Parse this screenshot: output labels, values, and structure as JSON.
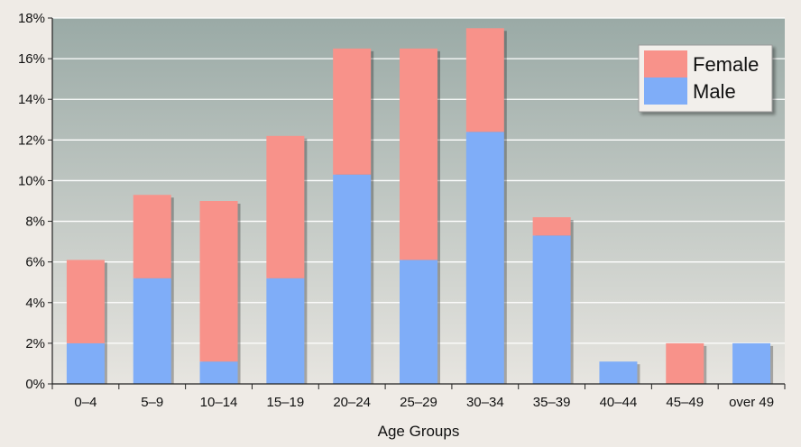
{
  "chart_data": {
    "type": "bar",
    "stacked": true,
    "title": "",
    "xlabel": "Age Groups",
    "ylabel": "",
    "ylim": [
      0,
      18
    ],
    "ytick_step": 2,
    "ytick_suffix": "%",
    "grid": true,
    "legend_position": "top-right",
    "categories": [
      "0–4",
      "5–9",
      "10–14",
      "15–19",
      "20–24",
      "25–29",
      "30–34",
      "35–39",
      "40–44",
      "45–49",
      "over 49"
    ],
    "series": [
      {
        "name": "Male",
        "color": "#7fadf8",
        "values": [
          2.0,
          5.2,
          1.1,
          5.2,
          10.3,
          6.1,
          12.4,
          7.3,
          1.1,
          0.0,
          2.0
        ]
      },
      {
        "name": "Female",
        "color": "#f8928a",
        "values": [
          4.1,
          4.1,
          7.9,
          7.0,
          6.2,
          10.4,
          5.1,
          0.9,
          0.0,
          2.0,
          0.0
        ]
      }
    ],
    "legend_order": [
      "Female",
      "Male"
    ]
  }
}
